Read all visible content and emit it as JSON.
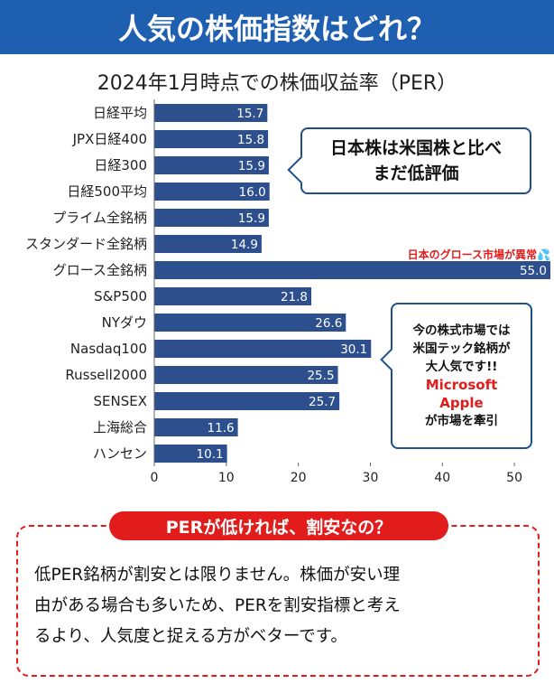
{
  "header": {
    "title": "人気の株価指数はどれ？"
  },
  "chart_data": {
    "type": "bar",
    "orientation": "horizontal",
    "title": "2024年1月時点での株価収益率（PER）",
    "categories": [
      "日経平均",
      "JPX日経400",
      "日経300",
      "日経500平均",
      "プライム全銘柄",
      "スタンダード全銘柄",
      "グロース全銘柄",
      "S&P500",
      "NYダウ",
      "Nasdaq100",
      "Russell2000",
      "SENSEX",
      "上海総合",
      "ハンセン"
    ],
    "values": [
      15.7,
      15.8,
      15.9,
      16.0,
      15.9,
      14.9,
      55.0,
      21.8,
      26.6,
      30.1,
      25.5,
      25.7,
      11.6,
      10.1
    ],
    "value_labels": [
      "15.7",
      "15.8",
      "15.9",
      "16.0",
      "15.9",
      "14.9",
      "55.0",
      "21.8",
      "26.6",
      "30.1",
      "25.5",
      "25.7",
      "11.6",
      "10.1"
    ],
    "xlim": [
      0,
      55
    ],
    "xticks": [
      0,
      10,
      20,
      30,
      40,
      50
    ],
    "bar_color": "#2d4f8e",
    "grid": false
  },
  "annotations": {
    "japan_callout": [
      "日本株は米国株と比べ",
      "まだ低評価"
    ],
    "growth_note": "日本のグロース市場が異常💦",
    "us_callout": {
      "lines": [
        "今の株式市場では",
        "米国テック銘柄が",
        "大人気です!!"
      ],
      "red_lines": [
        "Microsoft",
        "Apple"
      ],
      "last_line": "が市場を牽引"
    }
  },
  "bottom": {
    "title": "PERが低ければ、割安なの？",
    "lines": [
      "低PER銘柄が割安とは限りません。株価が安い理",
      "由がある場合も多いため、PERを割安指標と考え",
      "るより、人気度と捉える方がベターです。"
    ]
  }
}
